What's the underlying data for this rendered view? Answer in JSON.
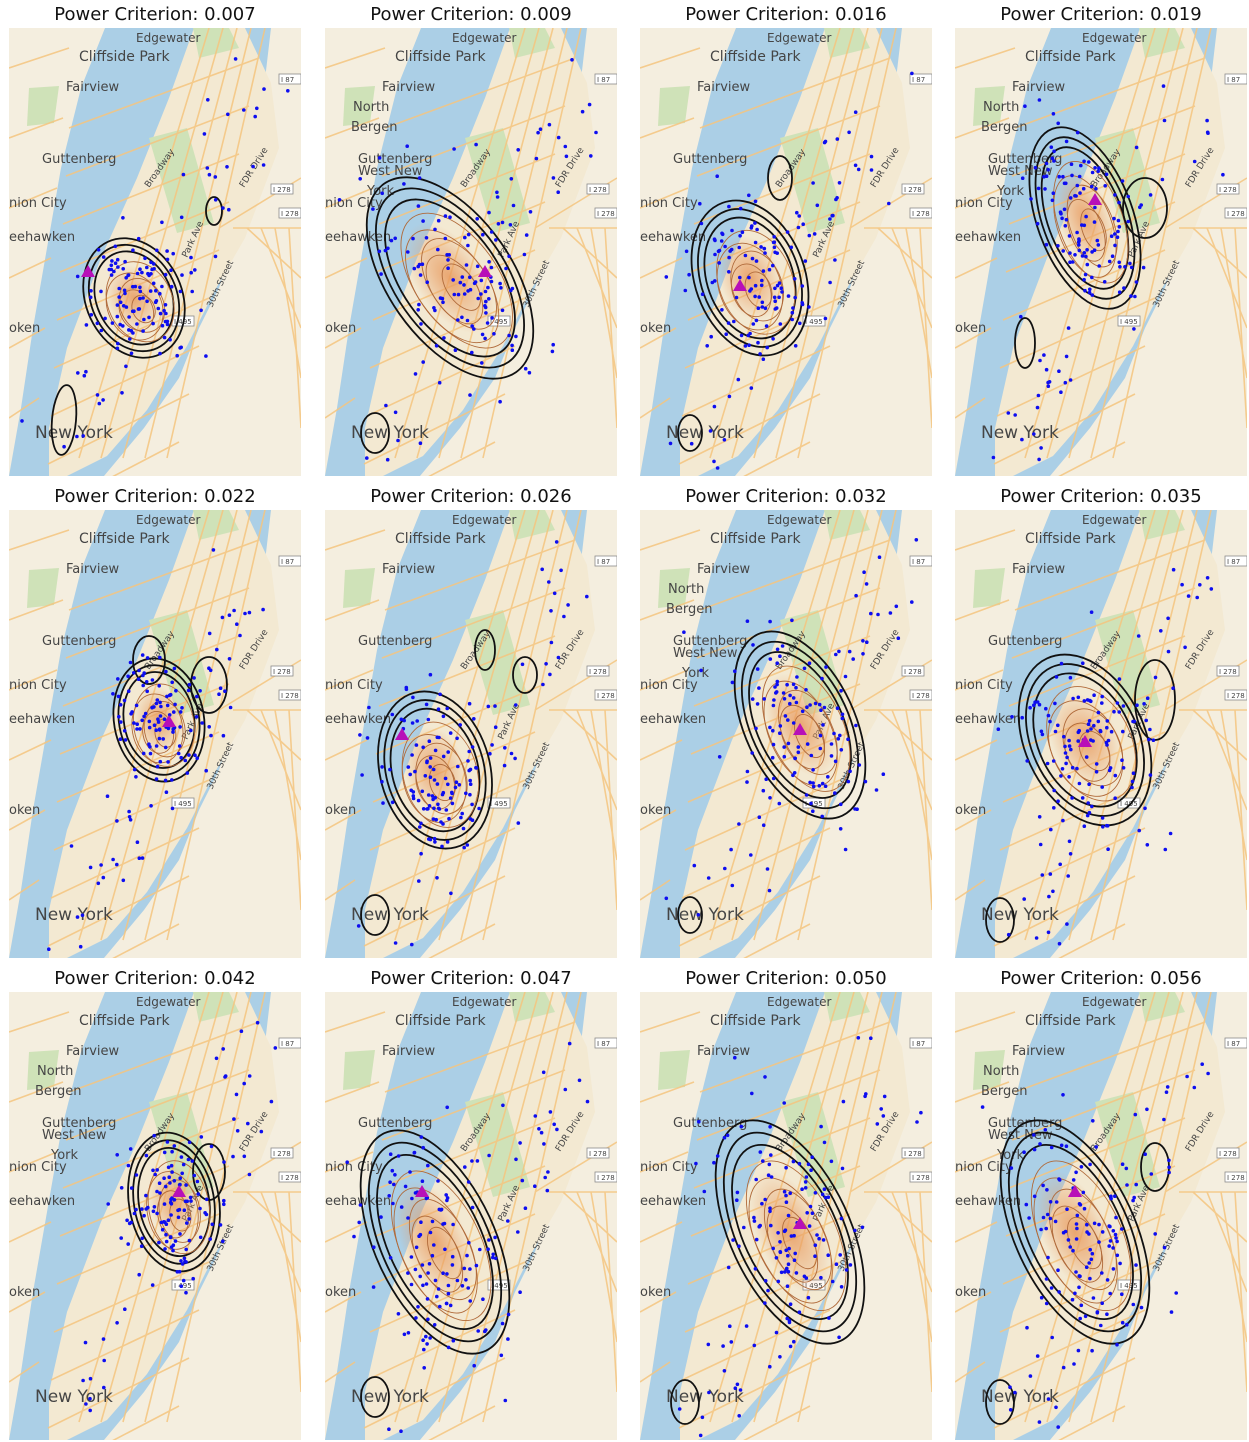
{
  "figure": {
    "title_prefix": "Power Criterion: ",
    "panels": [
      {
        "criterion": "0.007",
        "title": "Power Criterion: 0.007"
      },
      {
        "criterion": "0.009",
        "title": "Power Criterion: 0.009"
      },
      {
        "criterion": "0.016",
        "title": "Power Criterion: 0.016"
      },
      {
        "criterion": "0.019",
        "title": "Power Criterion: 0.019"
      },
      {
        "criterion": "0.022",
        "title": "Power Criterion: 0.022"
      },
      {
        "criterion": "0.026",
        "title": "Power Criterion: 0.026"
      },
      {
        "criterion": "0.032",
        "title": "Power Criterion: 0.032"
      },
      {
        "criterion": "0.035",
        "title": "Power Criterion: 0.035"
      },
      {
        "criterion": "0.042",
        "title": "Power Criterion: 0.042"
      },
      {
        "criterion": "0.047",
        "title": "Power Criterion: 0.047"
      },
      {
        "criterion": "0.050",
        "title": "Power Criterion: 0.050"
      },
      {
        "criterion": "0.056",
        "title": "Power Criterion: 0.056"
      }
    ]
  },
  "map_labels": {
    "edgewater": "Edgewater",
    "cliffside_park": "Cliffside Park",
    "fairview": "Fairview",
    "north_bergen_1": "North",
    "north_bergen_2": "Bergen",
    "guttenberg": "Guttenberg",
    "west_new_york_1": "West New",
    "west_new_york_2": "York",
    "union_city": "nion City",
    "weehawken": "eehawken",
    "hoboken": "oken",
    "new_york": "New York",
    "broadway": "Broadway",
    "park_ave": "Park Ave",
    "fdr_drive": "FDR Drive",
    "i87": "I 87",
    "i278": "I 278",
    "i495": "I 495",
    "thirtieth_street": "30th Street"
  },
  "colors": {
    "water": "#abcfe6",
    "land": "#f4eedf",
    "park": "#cfe2b8",
    "road": "#f5c57f",
    "contour": "#111111",
    "density": "#e89a5e",
    "points": "#0d0df0",
    "test_location": "#b80fb8"
  }
}
